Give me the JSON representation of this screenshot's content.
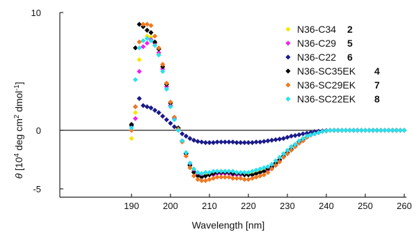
{
  "chart_data": {
    "type": "scatter",
    "xlabel": "Wavelength [nm]",
    "ylabel_parts": [
      "θ",
      " [10",
      "4",
      " deg cm",
      "2",
      " dmol",
      "-1",
      "]"
    ],
    "xlim": [
      188,
      262
    ],
    "ylim": [
      -5,
      10
    ],
    "x_ticks": [
      190,
      200,
      210,
      220,
      230,
      240,
      250,
      260
    ],
    "y_ticks": [
      -5,
      0,
      10
    ],
    "zero_line": true,
    "legend_position": "top-right",
    "series": [
      {
        "name": "N36-C34",
        "number": "2",
        "color": "#f4e800",
        "x": [
          190,
          191,
          192,
          193,
          194,
          195,
          196,
          197,
          198,
          199,
          200,
          201,
          202,
          203,
          204,
          205,
          206,
          207,
          208,
          209,
          210,
          211,
          212,
          213,
          214,
          215,
          216,
          217,
          218,
          219,
          220,
          221,
          222,
          223,
          224,
          225,
          226,
          227,
          228,
          229,
          230,
          231,
          232,
          233,
          234,
          235,
          236,
          237,
          238,
          239,
          240,
          241,
          242,
          243,
          244,
          245,
          246,
          247,
          248,
          249,
          250,
          251,
          252,
          253,
          254,
          255,
          256,
          257,
          258,
          259,
          260
        ],
        "y": [
          -0.7,
          1.5,
          6.0,
          7.6,
          8.0,
          7.9,
          7.3,
          6.5,
          5.0,
          3.5,
          2.0,
          1.0,
          0.1,
          -0.9,
          -1.9,
          -2.8,
          -3.4,
          -3.7,
          -3.8,
          -3.8,
          -3.7,
          -3.6,
          -3.6,
          -3.5,
          -3.5,
          -3.6,
          -3.6,
          -3.7,
          -3.7,
          -3.7,
          -3.7,
          -3.7,
          -3.6,
          -3.5,
          -3.4,
          -3.3,
          -3.1,
          -2.8,
          -2.5,
          -2.2,
          -1.9,
          -1.6,
          -1.3,
          -1.0,
          -0.8,
          -0.6,
          -0.4,
          -0.3,
          -0.2,
          -0.1,
          -0.05,
          0,
          0,
          0,
          0,
          0,
          0,
          0,
          0,
          0,
          0,
          0,
          0,
          0,
          0,
          0,
          0,
          0,
          0,
          0,
          0
        ]
      },
      {
        "name": "N36-C29",
        "number": "5",
        "color": "#ee22ee",
        "x": [
          190,
          191,
          192,
          193,
          194,
          195,
          196,
          197,
          198,
          199,
          200,
          201,
          202,
          203,
          204,
          205,
          206,
          207,
          208,
          209,
          210,
          211,
          212,
          213,
          214,
          215,
          216,
          217,
          218,
          219,
          220,
          221,
          222,
          223,
          224,
          225,
          226,
          227,
          228,
          229,
          230,
          231,
          232,
          233,
          234,
          235,
          236,
          237,
          238,
          239,
          240,
          241,
          242,
          243,
          244,
          245,
          246,
          247,
          248,
          249,
          250,
          251,
          252,
          253,
          254,
          255,
          256,
          257,
          258,
          259,
          260
        ],
        "y": [
          0.0,
          1.0,
          5.0,
          7.1,
          7.4,
          7.7,
          7.4,
          6.6,
          5.2,
          3.7,
          2.1,
          1.0,
          0.1,
          -0.9,
          -2.0,
          -2.9,
          -3.5,
          -3.8,
          -3.9,
          -3.9,
          -3.8,
          -3.8,
          -3.7,
          -3.7,
          -3.7,
          -3.7,
          -3.8,
          -3.8,
          -3.8,
          -3.8,
          -3.8,
          -3.8,
          -3.7,
          -3.6,
          -3.5,
          -3.4,
          -3.2,
          -2.9,
          -2.6,
          -2.3,
          -2.0,
          -1.7,
          -1.4,
          -1.1,
          -0.9,
          -0.6,
          -0.4,
          -0.3,
          -0.2,
          -0.1,
          -0.05,
          0,
          0,
          0,
          0,
          0,
          0,
          0,
          0,
          0,
          0,
          0,
          0,
          0,
          0,
          0,
          0,
          0,
          0,
          0,
          0
        ]
      },
      {
        "name": "N36-C22",
        "number": "6",
        "color": "#1a1a8a",
        "x": [
          190,
          191,
          192,
          193,
          194,
          195,
          196,
          197,
          198,
          199,
          200,
          201,
          202,
          203,
          204,
          205,
          206,
          207,
          208,
          209,
          210,
          211,
          212,
          213,
          214,
          215,
          216,
          217,
          218,
          219,
          220,
          221,
          222,
          223,
          224,
          225,
          226,
          227,
          228,
          229,
          230,
          231,
          232,
          233,
          234,
          235,
          236,
          237,
          238,
          239,
          240,
          241,
          242,
          243,
          244,
          245,
          246,
          247,
          248,
          249,
          250,
          251,
          252,
          253,
          254,
          255,
          256,
          257,
          258,
          259,
          260
        ],
        "y": [
          0.4,
          2.0,
          2.7,
          2.1,
          2.0,
          1.9,
          1.7,
          1.5,
          1.2,
          0.9,
          0.6,
          0.3,
          0.0,
          -0.3,
          -0.5,
          -0.7,
          -0.85,
          -0.95,
          -1.0,
          -1.05,
          -1.05,
          -1.05,
          -1.0,
          -1.0,
          -1.0,
          -1.0,
          -1.0,
          -1.05,
          -1.05,
          -1.05,
          -1.05,
          -1.05,
          -1.0,
          -1.0,
          -0.95,
          -0.9,
          -0.85,
          -0.8,
          -0.75,
          -0.7,
          -0.6,
          -0.5,
          -0.45,
          -0.38,
          -0.3,
          -0.25,
          -0.18,
          -0.12,
          -0.08,
          -0.05,
          -0.02,
          0,
          0,
          0,
          0,
          0,
          0,
          0,
          0,
          0,
          0,
          0,
          0,
          0,
          0,
          0,
          0,
          0,
          0,
          0,
          0
        ]
      },
      {
        "name": "N36-SC35EK",
        "number": "4",
        "color": "#000000",
        "x": [
          190,
          191,
          192,
          193,
          194,
          195,
          196,
          197,
          198,
          199,
          200,
          201,
          202,
          203,
          204,
          205,
          206,
          207,
          208,
          209,
          210,
          211,
          212,
          213,
          214,
          215,
          216,
          217,
          218,
          219,
          220,
          221,
          222,
          223,
          224,
          225,
          226,
          227,
          228,
          229,
          230,
          231,
          232,
          233,
          234,
          235,
          236,
          237,
          238,
          239,
          240,
          241,
          242,
          243,
          244,
          245,
          246,
          247,
          248,
          249,
          250,
          251,
          252,
          253,
          254,
          255,
          256,
          257,
          258,
          259,
          260
        ],
        "y": [
          0.5,
          7.0,
          9.0,
          8.8,
          8.5,
          8.3,
          7.5,
          6.9,
          5.4,
          3.9,
          2.3,
          1.1,
          0.2,
          -0.9,
          -2.0,
          -3.0,
          -3.6,
          -3.9,
          -4.0,
          -3.9,
          -3.8,
          -3.7,
          -3.6,
          -3.6,
          -3.6,
          -3.6,
          -3.7,
          -3.7,
          -3.7,
          -3.8,
          -3.8,
          -3.8,
          -3.7,
          -3.6,
          -3.5,
          -3.3,
          -3.1,
          -2.8,
          -2.5,
          -2.2,
          -1.9,
          -1.6,
          -1.3,
          -1.0,
          -0.8,
          -0.6,
          -0.4,
          -0.3,
          -0.2,
          -0.1,
          -0.05,
          0,
          0,
          0,
          0,
          0,
          0,
          0,
          0,
          0,
          0,
          0,
          0,
          0,
          0,
          0,
          0,
          0,
          0,
          0,
          0
        ]
      },
      {
        "name": "N36-SC29EK",
        "number": "7",
        "color": "#f07820",
        "x": [
          190,
          191,
          192,
          193,
          194,
          195,
          196,
          197,
          198,
          199,
          200,
          201,
          202,
          203,
          204,
          205,
          206,
          207,
          208,
          209,
          210,
          211,
          212,
          213,
          214,
          215,
          216,
          217,
          218,
          219,
          220,
          221,
          222,
          223,
          224,
          225,
          226,
          227,
          228,
          229,
          230,
          231,
          232,
          233,
          234,
          235,
          236,
          237,
          238,
          239,
          240,
          241,
          242,
          243,
          244,
          245,
          246,
          247,
          248,
          249,
          250,
          251,
          252,
          253,
          254,
          255,
          256,
          257,
          258,
          259,
          260
        ],
        "y": [
          0.0,
          2.0,
          7.5,
          9.0,
          9.0,
          8.9,
          8.0,
          7.0,
          5.6,
          4.0,
          2.4,
          1.1,
          0.1,
          -1.0,
          -2.2,
          -3.2,
          -3.9,
          -4.2,
          -4.3,
          -4.3,
          -4.2,
          -4.1,
          -4.0,
          -4.0,
          -4.0,
          -4.0,
          -4.1,
          -4.1,
          -4.1,
          -4.2,
          -4.2,
          -4.1,
          -4.0,
          -3.9,
          -3.8,
          -3.6,
          -3.3,
          -3.0,
          -2.7,
          -2.3,
          -2.0,
          -1.7,
          -1.4,
          -1.1,
          -0.9,
          -0.6,
          -0.4,
          -0.3,
          -0.2,
          -0.1,
          -0.05,
          0,
          0,
          0,
          0,
          0,
          0,
          0,
          0,
          0,
          0,
          0,
          0,
          0,
          0,
          0,
          0,
          0,
          0,
          0,
          0
        ]
      },
      {
        "name": "N36-SC22EK",
        "number": "8",
        "color": "#29e0f0",
        "x": [
          190,
          191,
          192,
          193,
          194,
          195,
          196,
          197,
          198,
          199,
          200,
          201,
          202,
          203,
          204,
          205,
          206,
          207,
          208,
          209,
          210,
          211,
          212,
          213,
          214,
          215,
          216,
          217,
          218,
          219,
          220,
          221,
          222,
          223,
          224,
          225,
          226,
          227,
          228,
          229,
          230,
          231,
          232,
          233,
          234,
          235,
          236,
          237,
          238,
          239,
          240,
          241,
          242,
          243,
          244,
          245,
          246,
          247,
          248,
          249,
          250,
          251,
          252,
          253,
          254,
          255,
          256,
          257,
          258,
          259,
          260
        ],
        "y": [
          0.2,
          4.3,
          7.0,
          7.6,
          7.8,
          7.6,
          7.2,
          6.4,
          5.0,
          3.5,
          2.0,
          0.9,
          0.0,
          -0.9,
          -1.9,
          -2.8,
          -3.3,
          -3.6,
          -3.7,
          -3.6,
          -3.6,
          -3.5,
          -3.5,
          -3.5,
          -3.5,
          -3.5,
          -3.5,
          -3.6,
          -3.6,
          -3.6,
          -3.6,
          -3.5,
          -3.4,
          -3.3,
          -3.2,
          -3.1,
          -2.9,
          -2.6,
          -2.3,
          -2.0,
          -1.7,
          -1.4,
          -1.2,
          -0.9,
          -0.7,
          -0.5,
          -0.4,
          -0.3,
          -0.2,
          -0.1,
          -0.05,
          0,
          0,
          0,
          0,
          0,
          0,
          0,
          0,
          0,
          0,
          0,
          0,
          0,
          0,
          0,
          0,
          0,
          0,
          0,
          0
        ]
      }
    ]
  }
}
